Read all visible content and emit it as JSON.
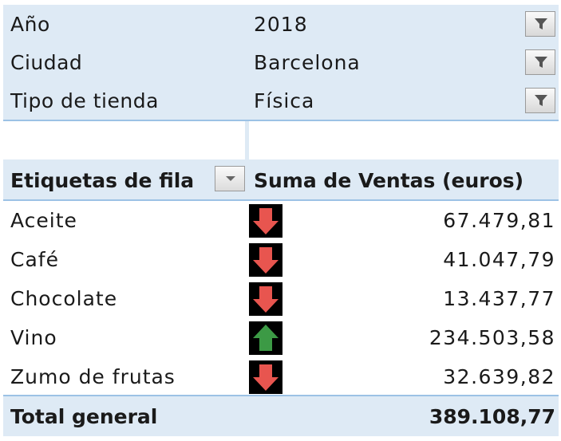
{
  "filters": [
    {
      "label": "Año",
      "value": "2018"
    },
    {
      "label": "Ciudad",
      "value": "Barcelona"
    },
    {
      "label": "Tipo de tienda",
      "value": "Física"
    }
  ],
  "header": {
    "row_labels": "Etiquetas de fila",
    "sum_label": "Suma de Ventas (euros)"
  },
  "rows": [
    {
      "name": "Aceite",
      "value": "67.479,81",
      "trend": "down"
    },
    {
      "name": "Café",
      "value": "41.047,79",
      "trend": "down"
    },
    {
      "name": "Chocolate",
      "value": "13.437,77",
      "trend": "down"
    },
    {
      "name": "Vino",
      "value": "234.503,58",
      "trend": "up"
    },
    {
      "name": "Zumo de frutas",
      "value": "32.639,82",
      "trend": "down"
    }
  ],
  "total": {
    "label": "Total general",
    "value": "389.108,77"
  },
  "colors": {
    "header_bg": "#deeaf5",
    "border": "#9cc2e5",
    "arrow_down": "#e8554f",
    "arrow_up": "#3c9a45"
  },
  "icons": {
    "filter": "filter-funnel-icon",
    "dropdown": "chevron-down-icon",
    "down": "red-down-arrow-icon",
    "up": "green-up-arrow-icon"
  }
}
